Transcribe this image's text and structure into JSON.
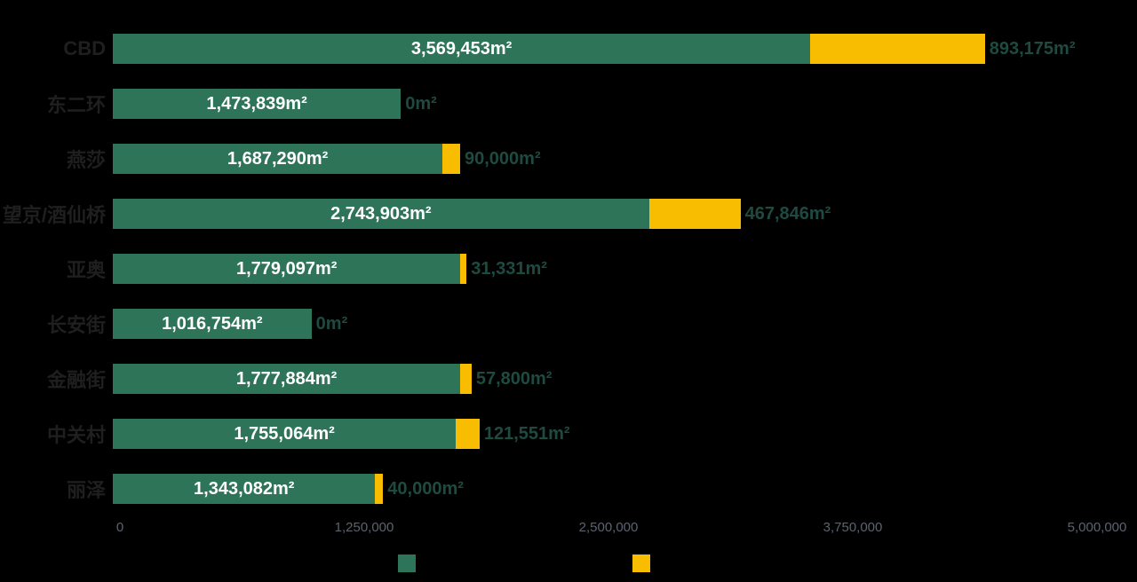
{
  "colors": {
    "background": "#000000",
    "green": "#2d7458",
    "yellow": "#f8bd00",
    "on_bar_text": "#ffffff",
    "outside_text": "#1e4a40",
    "category_text": "#1f1f1f",
    "axis_text": "#5c6370"
  },
  "chart_data": {
    "type": "bar",
    "orientation": "horizontal",
    "stacked": true,
    "title": "",
    "categories": [
      "CBD",
      "东二环",
      "燕莎",
      "望京/酒仙桥",
      "亚奥",
      "长安街",
      "金融街",
      "中关村",
      "丽泽"
    ],
    "series": [
      {
        "name": "green-series",
        "color": "#2d7458",
        "values": [
          3569453,
          1473839,
          1687290,
          2743903,
          1779097,
          1016754,
          1777884,
          1755064,
          1343082
        ],
        "value_labels": [
          "3,569,453m²",
          "1,473,839m²",
          "1,687,290m²",
          "2,743,903m²",
          "1,779,097m²",
          "1,016,754m²",
          "1,777,884m²",
          "1,755,064m²",
          "1,343,082m²"
        ]
      },
      {
        "name": "yellow-series",
        "color": "#f8bd00",
        "values": [
          893175,
          0,
          90000,
          467846,
          31331,
          0,
          57800,
          121551,
          40000
        ],
        "value_labels": [
          "893,175m²",
          "0m²",
          "90,000m²",
          "467,846m²",
          "31,331m²",
          "0m²",
          "57,800m²",
          "121,551m²",
          "40,000m²"
        ]
      }
    ],
    "xlim": [
      0,
      5000000
    ],
    "x_tick_values": [
      0,
      1250000,
      2500000,
      3750000,
      5000000
    ],
    "x_tick_labels": [
      "0",
      "1,250,000",
      "2,500,000",
      "3,750,000",
      "5,000,000"
    ],
    "grid": false,
    "legend_position": "bottom",
    "legend_swatches": [
      {
        "name": "green-series",
        "color": "#2d7458"
      },
      {
        "name": "yellow-series",
        "color": "#f8bd00"
      }
    ]
  }
}
